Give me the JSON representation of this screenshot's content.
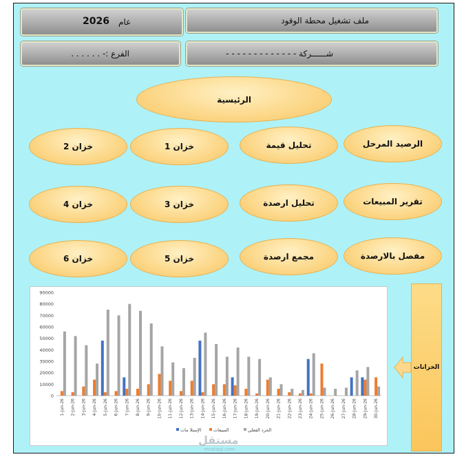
{
  "header": {
    "file_title": "ملف تشغيل محطة الوقود",
    "year_label": "عام",
    "year_value": "2026",
    "company": "شــــــركة - - - - - - - - - - - - -",
    "branch": "الفرع :- . . . . . ."
  },
  "menu": {
    "main": "الرئيسية",
    "items": [
      {
        "label": "الرصيد المرحل"
      },
      {
        "label": "تحليل قيمة"
      },
      {
        "label": "خزان 1"
      },
      {
        "label": "خزان 2"
      },
      {
        "label": "تقرير المبيعات"
      },
      {
        "label": "تحليل ارصدة"
      },
      {
        "label": "خزان 3"
      },
      {
        "label": "خزان 4"
      },
      {
        "label": "مفصل بالارصدة"
      },
      {
        "label": "مجمع ارصدة"
      },
      {
        "label": "خزان 5"
      },
      {
        "label": "خزان 6"
      }
    ]
  },
  "side_panel": {
    "label": "الخزانات"
  },
  "watermark": {
    "text": "مستقل",
    "sub": "mostaql.com"
  },
  "colors": {
    "background": "#aef2f8",
    "oval": "#fcd98c",
    "series_blue": "#4472c4",
    "series_orange": "#ed7d31",
    "series_gray": "#a5a5a5"
  },
  "chart_data": {
    "type": "bar",
    "yticks": [
      "90000",
      "80000",
      "70000",
      "60000",
      "50000",
      "40000",
      "30000",
      "20000",
      "10000",
      "0"
    ],
    "ylim": [
      0,
      90000
    ],
    "categories": [
      "1-Jun-26",
      "2-Jun-26",
      "3-Jun-26",
      "4-Jun-26",
      "5-Jun-26",
      "6-Jun-26",
      "7-Jun-26",
      "8-Jun-26",
      "9-Jun-26",
      "10-Jun-26",
      "11-Jun-26",
      "12-Jun-26",
      "13-Jun-26",
      "14-Jun-26",
      "15-Jun-26",
      "16-Jun-26",
      "17-Jun-26",
      "18-Jun-26",
      "19-Jun-26",
      "20-Jun-26",
      "21-Jun-26",
      "22-Jun-26",
      "23-Jun-26",
      "24-Jun-26",
      "25-Jun-26",
      "26-Jun-26",
      "27-Jun-26",
      "28-Jun-26",
      "29-Jun-26",
      "30-Jun-26"
    ],
    "series": [
      {
        "name": "الإستلا مات",
        "color": "#4472c4",
        "values": [
          0,
          0,
          0,
          0,
          48000,
          0,
          16000,
          0,
          0,
          0,
          0,
          0,
          0,
          48000,
          0,
          0,
          16000,
          0,
          0,
          0,
          0,
          0,
          0,
          32000,
          0,
          0,
          0,
          16000,
          16000,
          0
        ]
      },
      {
        "name": "المبيعات",
        "color": "#ed7d31",
        "values": [
          4000,
          3000,
          8000,
          14000,
          3000,
          4000,
          6000,
          6000,
          10000,
          19000,
          13000,
          4000,
          13000,
          3000,
          10000,
          10000,
          9000,
          6000,
          2000,
          14000,
          6000,
          3000,
          2000,
          2000,
          28000,
          0,
          0,
          0,
          14000,
          16000
        ]
      },
      {
        "name": "الجرد الفعلي",
        "color": "#a5a5a5",
        "values": [
          56000,
          52000,
          44000,
          28000,
          75000,
          70000,
          80000,
          74000,
          63000,
          43000,
          29000,
          24000,
          33000,
          55000,
          45000,
          34000,
          42000,
          34000,
          32000,
          16000,
          10000,
          6000,
          5000,
          37000,
          7000,
          6000,
          7000,
          22000,
          25000,
          8000
        ]
      }
    ],
    "legend_position": "bottom"
  }
}
